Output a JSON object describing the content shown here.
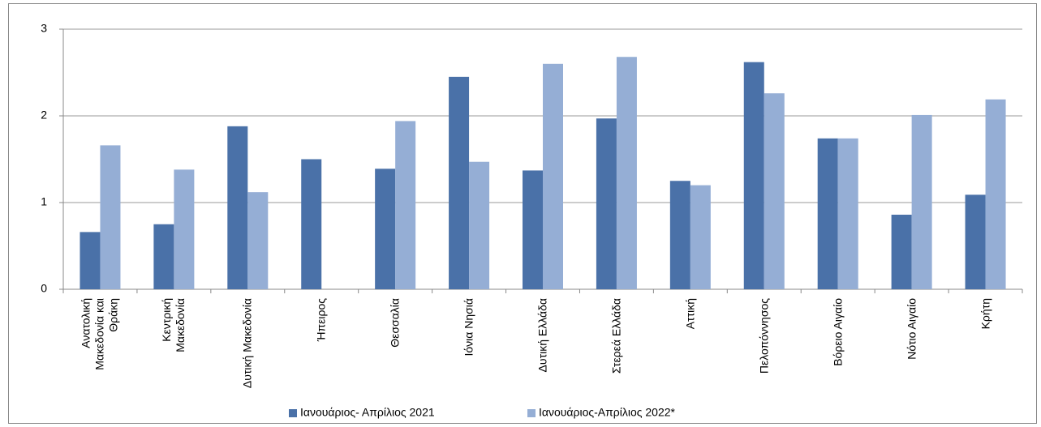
{
  "chart_data": {
    "type": "bar",
    "categories": [
      "Ανατολική\nΜακεδονία και\nΘράκη",
      "Κεντρική\nΜακεδονία",
      "Δυτική Μακεδονία",
      "Ήπειρος",
      "Θεσσαλία",
      "Ιόνια Νησιά",
      "Δυτική Ελλάδα",
      "Στερεά Ελλάδα",
      "Αττική",
      "Πελοπόννησος",
      "Βόρειο Αιγαίο",
      "Νότιο Αιγαίο",
      "Κρήτη"
    ],
    "series": [
      {
        "name": "Ιανουάριος- Απρίλιος 2021",
        "color": "#4a71a8",
        "values": [
          0.66,
          0.75,
          1.88,
          1.5,
          1.39,
          2.45,
          1.37,
          1.97,
          1.25,
          2.62,
          1.74,
          0.86,
          1.09
        ]
      },
      {
        "name": "Ιανουάριος-Απρίλιος 2022*",
        "color": "#95aed5",
        "values": [
          1.66,
          1.38,
          1.12,
          null,
          1.94,
          1.47,
          2.6,
          2.68,
          1.2,
          2.26,
          1.74,
          2.01,
          2.19
        ]
      }
    ],
    "ylim": [
      0,
      3
    ],
    "yticks": [
      0,
      1,
      2,
      3
    ],
    "grid": true,
    "legend": "bottom"
  }
}
